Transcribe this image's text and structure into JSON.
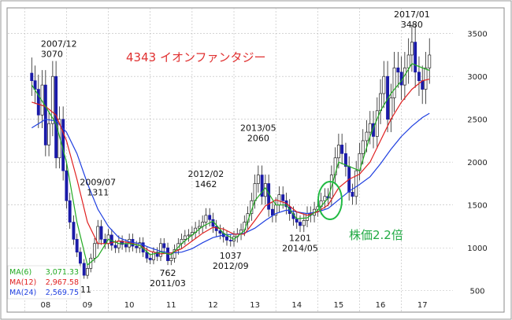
{
  "chart_data": {
    "type": "candlestick",
    "title": "4343 イオンファンタジー",
    "note": "株価2.2倍",
    "x_labels": [
      "08",
      "09",
      "10",
      "11",
      "12",
      "13",
      "14",
      "15",
      "16",
      "17"
    ],
    "y_ticks": [
      500,
      1000,
      1500,
      2000,
      2500,
      3000,
      3500
    ],
    "ylim": [
      250,
      3800
    ],
    "xlim": [
      2007.92,
      2017.5
    ],
    "grid": true,
    "colors": {
      "up": "#ffffff",
      "down": "#1a1aa8",
      "wick": "#222222",
      "ma6": "#22aa22",
      "ma12": "#e02020",
      "ma24": "#2040e0",
      "title": "#e03030",
      "note": "#22aa44",
      "grid": "#bbbbbb"
    },
    "legend": [
      {
        "name": "MA(6)",
        "value": "3,071.33",
        "color": "#22aa22"
      },
      {
        "name": "MA(12)",
        "value": "2,967.58",
        "color": "#e02020"
      },
      {
        "name": "MA(24)",
        "value": "2,569.75",
        "color": "#2040e0"
      }
    ],
    "annotations": [
      {
        "date": "2007/12",
        "value": "3070",
        "x": 2007.95,
        "y": 3070
      },
      {
        "date": "2009/07",
        "value": "1311",
        "x": 2009.5,
        "y": 1311
      },
      {
        "date": "2011/03",
        "value": "762",
        "x": 2011.17,
        "y": 762
      },
      {
        "date": "2012/02",
        "value": "1462",
        "x": 2012.08,
        "y": 1462
      },
      {
        "date": "2012/09",
        "value": "1037",
        "x": 2012.67,
        "y": 1037
      },
      {
        "date": "2013/05",
        "value": "2060",
        "x": 2013.33,
        "y": 2060
      },
      {
        "date": "2014/05",
        "value": "1201",
        "x": 2014.33,
        "y": 1201
      },
      {
        "date": "2017/01",
        "value": "3480",
        "x": 2017.0,
        "y": 3480
      }
    ],
    "low_partial_label": "11",
    "monthly_close": [
      {
        "x": 2007.92,
        "close": 2950
      },
      {
        "x": 2008.0,
        "close": 2850
      },
      {
        "x": 2008.08,
        "close": 2550
      },
      {
        "x": 2008.17,
        "close": 2900
      },
      {
        "x": 2008.25,
        "close": 2200
      },
      {
        "x": 2008.33,
        "close": 2450
      },
      {
        "x": 2008.42,
        "close": 3000
      },
      {
        "x": 2008.5,
        "close": 2050
      },
      {
        "x": 2008.58,
        "close": 2500
      },
      {
        "x": 2008.67,
        "close": 1900
      },
      {
        "x": 2008.75,
        "close": 1550
      },
      {
        "x": 2008.83,
        "close": 1300
      },
      {
        "x": 2008.92,
        "close": 1100
      },
      {
        "x": 2009.0,
        "close": 950
      },
      {
        "x": 2009.08,
        "close": 820
      },
      {
        "x": 2009.17,
        "close": 680
      },
      {
        "x": 2009.25,
        "close": 760
      },
      {
        "x": 2009.33,
        "close": 880
      },
      {
        "x": 2009.42,
        "close": 1050
      },
      {
        "x": 2009.5,
        "close": 1250
      },
      {
        "x": 2009.58,
        "close": 1100
      },
      {
        "x": 2009.67,
        "close": 1050
      },
      {
        "x": 2009.75,
        "close": 1150
      },
      {
        "x": 2009.83,
        "close": 1030
      },
      {
        "x": 2009.92,
        "close": 1000
      },
      {
        "x": 2010.0,
        "close": 1080
      },
      {
        "x": 2010.08,
        "close": 1040
      },
      {
        "x": 2010.17,
        "close": 1010
      },
      {
        "x": 2010.25,
        "close": 1100
      },
      {
        "x": 2010.33,
        "close": 1020
      },
      {
        "x": 2010.42,
        "close": 1000
      },
      {
        "x": 2010.5,
        "close": 1060
      },
      {
        "x": 2010.58,
        "close": 950
      },
      {
        "x": 2010.67,
        "close": 880
      },
      {
        "x": 2010.75,
        "close": 860
      },
      {
        "x": 2010.83,
        "close": 950
      },
      {
        "x": 2010.92,
        "close": 900
      },
      {
        "x": 2011.0,
        "close": 1050
      },
      {
        "x": 2011.08,
        "close": 1000
      },
      {
        "x": 2011.17,
        "close": 850
      },
      {
        "x": 2011.25,
        "close": 880
      },
      {
        "x": 2011.33,
        "close": 980
      },
      {
        "x": 2011.42,
        "close": 1050
      },
      {
        "x": 2011.5,
        "close": 1100
      },
      {
        "x": 2011.58,
        "close": 1140
      },
      {
        "x": 2011.67,
        "close": 1150
      },
      {
        "x": 2011.75,
        "close": 1180
      },
      {
        "x": 2011.83,
        "close": 1230
      },
      {
        "x": 2011.92,
        "close": 1250
      },
      {
        "x": 2012.0,
        "close": 1300
      },
      {
        "x": 2012.08,
        "close": 1380
      },
      {
        "x": 2012.17,
        "close": 1330
      },
      {
        "x": 2012.25,
        "close": 1250
      },
      {
        "x": 2012.33,
        "close": 1200
      },
      {
        "x": 2012.42,
        "close": 1170
      },
      {
        "x": 2012.5,
        "close": 1130
      },
      {
        "x": 2012.58,
        "close": 1090
      },
      {
        "x": 2012.67,
        "close": 1080
      },
      {
        "x": 2012.75,
        "close": 1130
      },
      {
        "x": 2012.83,
        "close": 1160
      },
      {
        "x": 2012.92,
        "close": 1210
      },
      {
        "x": 2013.0,
        "close": 1300
      },
      {
        "x": 2013.08,
        "close": 1400
      },
      {
        "x": 2013.17,
        "close": 1550
      },
      {
        "x": 2013.25,
        "close": 1750
      },
      {
        "x": 2013.33,
        "close": 1850
      },
      {
        "x": 2013.42,
        "close": 1600
      },
      {
        "x": 2013.5,
        "close": 1750
      },
      {
        "x": 2013.58,
        "close": 1450
      },
      {
        "x": 2013.67,
        "close": 1380
      },
      {
        "x": 2013.75,
        "close": 1500
      },
      {
        "x": 2013.83,
        "close": 1620
      },
      {
        "x": 2013.92,
        "close": 1550
      },
      {
        "x": 2014.0,
        "close": 1480
      },
      {
        "x": 2014.08,
        "close": 1400
      },
      {
        "x": 2014.17,
        "close": 1340
      },
      {
        "x": 2014.25,
        "close": 1300
      },
      {
        "x": 2014.33,
        "close": 1260
      },
      {
        "x": 2014.42,
        "close": 1320
      },
      {
        "x": 2014.5,
        "close": 1400
      },
      {
        "x": 2014.58,
        "close": 1380
      },
      {
        "x": 2014.67,
        "close": 1450
      },
      {
        "x": 2014.75,
        "close": 1480
      },
      {
        "x": 2014.83,
        "close": 1550
      },
      {
        "x": 2014.92,
        "close": 1600
      },
      {
        "x": 2015.0,
        "close": 1580
      },
      {
        "x": 2015.08,
        "close": 1850
      },
      {
        "x": 2015.17,
        "close": 2050
      },
      {
        "x": 2015.25,
        "close": 2200
      },
      {
        "x": 2015.33,
        "close": 2100
      },
      {
        "x": 2015.42,
        "close": 1950
      },
      {
        "x": 2015.5,
        "close": 1650
      },
      {
        "x": 2015.58,
        "close": 1600
      },
      {
        "x": 2015.67,
        "close": 1900
      },
      {
        "x": 2015.75,
        "close": 2100
      },
      {
        "x": 2015.83,
        "close": 2250
      },
      {
        "x": 2015.92,
        "close": 2350
      },
      {
        "x": 2016.0,
        "close": 2450
      },
      {
        "x": 2016.08,
        "close": 2300
      },
      {
        "x": 2016.17,
        "close": 2600
      },
      {
        "x": 2016.25,
        "close": 2800
      },
      {
        "x": 2016.33,
        "close": 3000
      },
      {
        "x": 2016.42,
        "close": 2500
      },
      {
        "x": 2016.5,
        "close": 2750
      },
      {
        "x": 2016.58,
        "close": 3100
      },
      {
        "x": 2016.67,
        "close": 3050
      },
      {
        "x": 2016.75,
        "close": 2900
      },
      {
        "x": 2016.83,
        "close": 3100
      },
      {
        "x": 2016.92,
        "close": 3250
      },
      {
        "x": 2017.0,
        "close": 3400
      },
      {
        "x": 2017.08,
        "close": 3050
      },
      {
        "x": 2017.17,
        "close": 2950
      },
      {
        "x": 2017.25,
        "close": 2850
      },
      {
        "x": 2017.33,
        "close": 3100
      },
      {
        "x": 2017.42,
        "close": 3250
      }
    ],
    "ma6": [
      [
        2007.92,
        2900
      ],
      [
        2008.25,
        2650
      ],
      [
        2008.5,
        2450
      ],
      [
        2008.75,
        2000
      ],
      [
        2009.0,
        1300
      ],
      [
        2009.25,
        800
      ],
      [
        2009.5,
        900
      ],
      [
        2009.75,
        1100
      ],
      [
        2010.0,
        1050
      ],
      [
        2010.25,
        1050
      ],
      [
        2010.5,
        1030
      ],
      [
        2010.75,
        920
      ],
      [
        2011.0,
        950
      ],
      [
        2011.25,
        920
      ],
      [
        2011.5,
        1050
      ],
      [
        2011.75,
        1150
      ],
      [
        2012.0,
        1250
      ],
      [
        2012.25,
        1310
      ],
      [
        2012.5,
        1170
      ],
      [
        2012.75,
        1100
      ],
      [
        2013.0,
        1200
      ],
      [
        2013.25,
        1550
      ],
      [
        2013.5,
        1700
      ],
      [
        2013.75,
        1500
      ],
      [
        2014.0,
        1500
      ],
      [
        2014.25,
        1340
      ],
      [
        2014.5,
        1350
      ],
      [
        2014.75,
        1440
      ],
      [
        2015.0,
        1580
      ],
      [
        2015.25,
        2000
      ],
      [
        2015.5,
        1950
      ],
      [
        2015.75,
        1900
      ],
      [
        2016.0,
        2300
      ],
      [
        2016.25,
        2600
      ],
      [
        2016.5,
        2800
      ],
      [
        2016.75,
        2950
      ],
      [
        2017.0,
        3150
      ],
      [
        2017.25,
        3100
      ],
      [
        2017.42,
        3071
      ]
    ],
    "ma12": [
      [
        2007.92,
        2700
      ],
      [
        2008.25,
        2650
      ],
      [
        2008.5,
        2550
      ],
      [
        2008.75,
        2250
      ],
      [
        2009.0,
        1800
      ],
      [
        2009.25,
        1300
      ],
      [
        2009.5,
        1050
      ],
      [
        2009.75,
        1050
      ],
      [
        2010.0,
        1080
      ],
      [
        2010.25,
        1060
      ],
      [
        2010.5,
        1030
      ],
      [
        2010.75,
        960
      ],
      [
        2011.0,
        930
      ],
      [
        2011.25,
        940
      ],
      [
        2011.5,
        990
      ],
      [
        2011.75,
        1080
      ],
      [
        2012.0,
        1170
      ],
      [
        2012.25,
        1240
      ],
      [
        2012.5,
        1220
      ],
      [
        2012.75,
        1160
      ],
      [
        2013.0,
        1160
      ],
      [
        2013.25,
        1320
      ],
      [
        2013.5,
        1490
      ],
      [
        2013.75,
        1560
      ],
      [
        2014.0,
        1520
      ],
      [
        2014.25,
        1420
      ],
      [
        2014.5,
        1380
      ],
      [
        2014.75,
        1420
      ],
      [
        2015.0,
        1500
      ],
      [
        2015.25,
        1700
      ],
      [
        2015.5,
        1800
      ],
      [
        2015.75,
        1860
      ],
      [
        2016.0,
        2000
      ],
      [
        2016.25,
        2250
      ],
      [
        2016.5,
        2500
      ],
      [
        2016.75,
        2700
      ],
      [
        2017.0,
        2850
      ],
      [
        2017.25,
        2950
      ],
      [
        2017.42,
        2968
      ]
    ],
    "ma24": [
      [
        2007.92,
        2400
      ],
      [
        2008.25,
        2500
      ],
      [
        2008.5,
        2480
      ],
      [
        2008.75,
        2350
      ],
      [
        2009.0,
        2100
      ],
      [
        2009.25,
        1750
      ],
      [
        2009.5,
        1450
      ],
      [
        2009.75,
        1250
      ],
      [
        2010.0,
        1120
      ],
      [
        2010.25,
        1070
      ],
      [
        2010.5,
        1050
      ],
      [
        2010.75,
        1000
      ],
      [
        2011.0,
        960
      ],
      [
        2011.25,
        940
      ],
      [
        2011.5,
        950
      ],
      [
        2011.75,
        990
      ],
      [
        2012.0,
        1060
      ],
      [
        2012.25,
        1120
      ],
      [
        2012.5,
        1150
      ],
      [
        2012.75,
        1160
      ],
      [
        2013.0,
        1170
      ],
      [
        2013.25,
        1230
      ],
      [
        2013.5,
        1320
      ],
      [
        2013.75,
        1400
      ],
      [
        2014.0,
        1440
      ],
      [
        2014.25,
        1420
      ],
      [
        2014.5,
        1400
      ],
      [
        2014.75,
        1420
      ],
      [
        2015.0,
        1460
      ],
      [
        2015.25,
        1560
      ],
      [
        2015.5,
        1660
      ],
      [
        2015.75,
        1740
      ],
      [
        2016.0,
        1830
      ],
      [
        2016.25,
        1980
      ],
      [
        2016.5,
        2150
      ],
      [
        2016.75,
        2300
      ],
      [
        2017.0,
        2420
      ],
      [
        2017.25,
        2520
      ],
      [
        2017.42,
        2570
      ]
    ]
  }
}
